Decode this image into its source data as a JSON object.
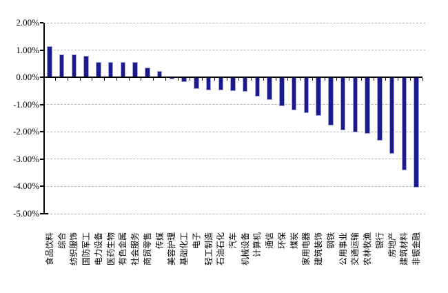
{
  "chart_data": {
    "type": "bar",
    "title": "",
    "xlabel": "",
    "ylabel": "",
    "legend": "none",
    "grid": "horizontal-dashed",
    "unit": "%",
    "ylim": [
      -5,
      2
    ],
    "ytick_values": [
      2,
      1,
      0,
      -1,
      -2,
      -3,
      -4,
      -5
    ],
    "ytick_labels": [
      "2.00%",
      "1.00%",
      "0.00%",
      "-1.00%",
      "-2.00%",
      "-3.00%",
      "-4.00%",
      "-5.00%"
    ],
    "bar_color": "#1a1a8f",
    "bar_border_color": "#a8a8d8",
    "gridline_color": "#b5b5b5",
    "axis_color": "#000000",
    "categories": [
      "食品饮料",
      "综合",
      "纺织服饰",
      "国防军工",
      "电力设备",
      "医药生物",
      "有色金属",
      "社会服务",
      "商贸零售",
      "传媒",
      "美容护理",
      "基础化工",
      "电子",
      "轻工制造",
      "石油石化",
      "汽车",
      "机械设备",
      "计算机",
      "通信",
      "环保",
      "煤炭",
      "家用电器",
      "建筑装饰",
      "钢铁",
      "公用事业",
      "交通运输",
      "农林牧渔",
      "银行",
      "房地产",
      "建筑材料",
      "非银金融"
    ],
    "values": [
      1.13,
      0.84,
      0.84,
      0.78,
      0.56,
      0.55,
      0.55,
      0.56,
      0.37,
      0.23,
      -0.08,
      -0.17,
      -0.42,
      -0.47,
      -0.48,
      -0.51,
      -0.53,
      -0.71,
      -0.84,
      -1.05,
      -1.22,
      -1.31,
      -1.41,
      -1.76,
      -1.94,
      -2.02,
      -2.07,
      -2.31,
      -2.79,
      -3.42,
      -4.05
    ]
  }
}
